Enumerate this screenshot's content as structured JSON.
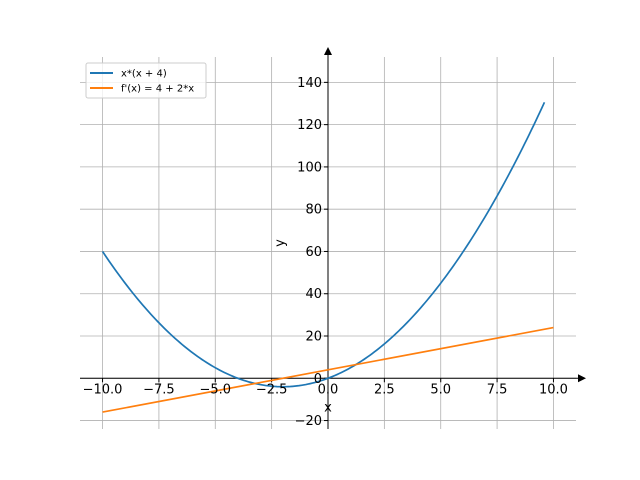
{
  "chart_data": {
    "type": "line",
    "title": "",
    "xlabel": "x",
    "ylabel": "y",
    "xlim": [
      -11,
      11
    ],
    "ylim": [
      -24,
      152
    ],
    "grid": true,
    "legend_position": "top-left",
    "x_ticks": [
      -10.0,
      -7.5,
      -5.0,
      -2.5,
      0.0,
      2.5,
      5.0,
      7.5,
      10.0
    ],
    "x_tick_labels": [
      "−10.0",
      "−7.5",
      "−5.0",
      "−2.5",
      "0.0",
      "2.5",
      "5.0",
      "7.5",
      "10.0"
    ],
    "y_ticks": [
      -20,
      0,
      20,
      40,
      60,
      80,
      100,
      120,
      140
    ],
    "y_tick_labels": [
      "−20",
      "0",
      "20",
      "40",
      "60",
      "80",
      "100",
      "120",
      "140"
    ],
    "series": [
      {
        "name": "x*(x + 4)",
        "color": "#1f77b4",
        "x": [
          -10,
          -9,
          -8,
          -7,
          -6,
          -5,
          -4,
          -3,
          -2,
          -1,
          0,
          1,
          2,
          3,
          4,
          5,
          6,
          7,
          8,
          9,
          9.6
        ],
        "y": [
          60,
          45,
          32,
          21,
          12,
          5,
          0,
          -3,
          -4,
          -3,
          0,
          5,
          12,
          21,
          32,
          45,
          60,
          77,
          96,
          117,
          130.56
        ]
      },
      {
        "name": "f'(x) = 4 + 2*x",
        "color": "#ff7f0e",
        "x": [
          -10,
          10
        ],
        "y": [
          -16,
          24
        ]
      }
    ]
  }
}
